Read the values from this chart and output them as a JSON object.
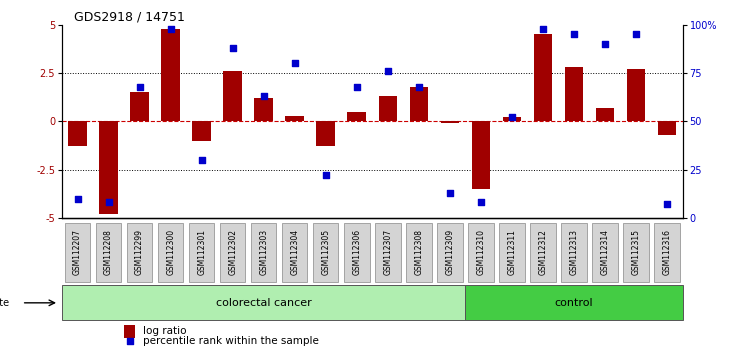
{
  "title": "GDS2918 / 14751",
  "samples": [
    "GSM112207",
    "GSM112208",
    "GSM112299",
    "GSM112300",
    "GSM112301",
    "GSM112302",
    "GSM112303",
    "GSM112304",
    "GSM112305",
    "GSM112306",
    "GSM112307",
    "GSM112308",
    "GSM112309",
    "GSM112310",
    "GSM112311",
    "GSM112312",
    "GSM112313",
    "GSM112314",
    "GSM112315",
    "GSM112316"
  ],
  "log_ratio": [
    -1.3,
    -4.8,
    1.5,
    4.8,
    -1.0,
    2.6,
    1.2,
    0.3,
    -1.3,
    0.5,
    1.3,
    1.8,
    -0.1,
    -3.5,
    0.2,
    4.5,
    2.8,
    0.7,
    2.7,
    -0.7
  ],
  "percentile": [
    10,
    8,
    68,
    98,
    30,
    88,
    63,
    80,
    22,
    68,
    76,
    68,
    13,
    8,
    52,
    98,
    95,
    90,
    95,
    7
  ],
  "colorectal_count": 13,
  "control_count": 7,
  "bar_color": "#a00000",
  "dot_color": "#0000cc",
  "bg_color": "#ffffff",
  "grid_color": "#000000",
  "zero_line_color": "#cc0000",
  "ylim": [
    -5,
    5
  ],
  "right_ylim": [
    0,
    100
  ],
  "yticks_left": [
    -5,
    -2.5,
    0,
    2.5,
    5
  ],
  "yticks_right": [
    0,
    25,
    50,
    75,
    100
  ],
  "colorectal_color": "#b0eeb0",
  "control_color": "#44cc44",
  "legend_items": [
    "log ratio",
    "percentile rank within the sample"
  ]
}
